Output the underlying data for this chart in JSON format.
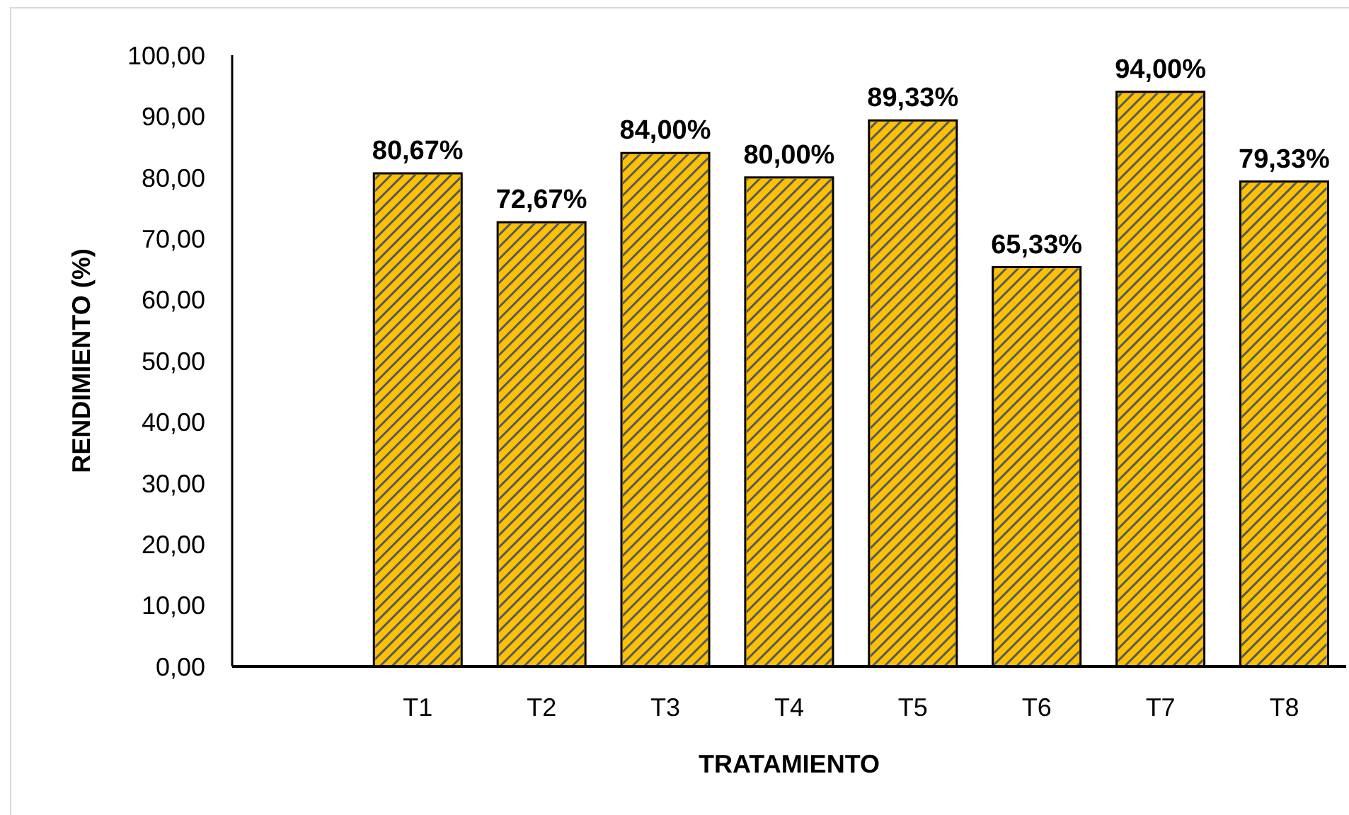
{
  "chart_data": {
    "type": "bar",
    "xlabel": "TRATAMIENTO",
    "ylabel": "RENDIMIENTO (%)",
    "categories": [
      null,
      "T1",
      "T2",
      "T3",
      "T4",
      "T5",
      "T6",
      "T7",
      "T8"
    ],
    "values": [
      null,
      80.67,
      72.67,
      84,
      80,
      89.33,
      65.33,
      94,
      79.33
    ],
    "value_labels": [
      null,
      "80,67%",
      "72,67%",
      "84,00%",
      "80,00%",
      "89,33%",
      "65,33%",
      "94,00%",
      "79,33%"
    ],
    "color": "#ffc000",
    "ylim": [
      0,
      100
    ],
    "yticks": [
      {
        "value": 0,
        "label": "0,00"
      },
      {
        "value": 10,
        "label": "10,00"
      },
      {
        "value": 20,
        "label": "20,00"
      },
      {
        "value": 30,
        "label": "30,00"
      },
      {
        "value": 40,
        "label": "40,00"
      },
      {
        "value": 50,
        "label": "50,00"
      },
      {
        "value": 60,
        "label": "60,00"
      },
      {
        "value": 70,
        "label": "70,00"
      },
      {
        "value": 80,
        "label": "80,00"
      },
      {
        "value": 90,
        "label": "90,00"
      },
      {
        "value": 100,
        "label": "100,00"
      }
    ],
    "grid": false,
    "legend": false
  }
}
